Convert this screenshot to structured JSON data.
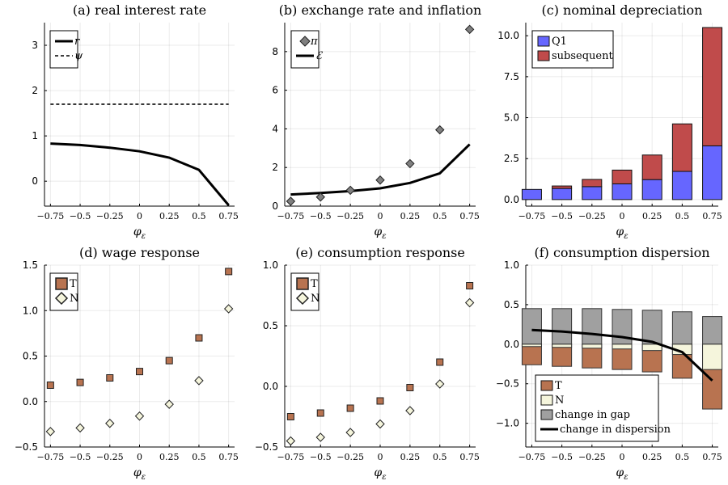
{
  "chart_data": [
    {
      "panel": "a",
      "type": "line",
      "title": "(a) real interest rate",
      "xlabel": "φ_ε",
      "x": [
        -0.75,
        -0.5,
        -0.25,
        0,
        0.25,
        0.5,
        0.75
      ],
      "xticks": [
        "−0.75",
        "−0.5",
        "−0.25",
        "0",
        "0.25",
        "0.5",
        "0.75"
      ],
      "yticks": [
        "0",
        "1",
        "2",
        "3"
      ],
      "ytick_values": [
        0,
        1,
        2,
        3
      ],
      "ylim": [
        -0.55,
        3.5
      ],
      "xlim": [
        -0.8,
        0.8
      ],
      "legend_position": "top-left",
      "series": [
        {
          "name": "r",
          "style": "solid",
          "color": "#000000",
          "values": [
            0.83,
            0.8,
            0.74,
            0.66,
            0.52,
            0.25,
            -0.53
          ]
        },
        {
          "name": "ψ",
          "style": "dashed",
          "color": "#000000",
          "values": [
            1.7,
            1.7,
            1.7,
            1.7,
            1.7,
            1.7,
            1.7
          ]
        }
      ]
    },
    {
      "panel": "b",
      "type": "line",
      "title": "(b) exchange rate and inflation",
      "xlabel": "φ_ε",
      "x": [
        -0.75,
        -0.5,
        -0.25,
        0,
        0.25,
        0.5,
        0.75
      ],
      "xticks": [
        "−0.75",
        "−0.5",
        "−0.25",
        "0",
        "0.25",
        "0.5",
        "0.75"
      ],
      "yticks": [
        "0",
        "2",
        "4",
        "6",
        "8"
      ],
      "ytick_values": [
        0,
        2,
        4,
        6,
        8
      ],
      "ylim": [
        0,
        9.5
      ],
      "xlim": [
        -0.8,
        0.8
      ],
      "legend_position": "top-left",
      "series": [
        {
          "name": "π",
          "style": "marker-diamond",
          "color": "#808080",
          "values": [
            0.25,
            0.47,
            0.82,
            1.35,
            2.2,
            3.95,
            9.15
          ]
        },
        {
          "name": "ℰ",
          "style": "solid",
          "color": "#000000",
          "values": [
            0.6,
            0.68,
            0.78,
            0.92,
            1.2,
            1.7,
            3.2
          ]
        }
      ]
    },
    {
      "panel": "c",
      "type": "bar",
      "stacked": true,
      "title": "(c) nominal depreciation",
      "xlabel": "φ_ε",
      "x": [
        -0.75,
        -0.5,
        -0.25,
        0,
        0.25,
        0.5,
        0.75
      ],
      "xticks": [
        "−0.75",
        "−0.5",
        "−0.25",
        "0",
        "0.25",
        "0.5",
        "0.75"
      ],
      "yticks": [
        "0.0",
        "2.5",
        "5.0",
        "7.5",
        "10.0"
      ],
      "ytick_values": [
        0,
        2.5,
        5,
        7.5,
        10
      ],
      "ylim": [
        -0.4,
        10.8
      ],
      "xlim": [
        -0.8,
        0.8
      ],
      "legend_position": "top-left",
      "series": [
        {
          "name": "Q1",
          "color": "#6666ff",
          "values": [
            0.62,
            0.68,
            0.79,
            0.96,
            1.22,
            1.72,
            3.28
          ]
        },
        {
          "name": "subsequent",
          "color": "#c04b4b",
          "values": [
            0.0,
            0.15,
            0.44,
            0.84,
            1.5,
            2.9,
            7.22
          ]
        }
      ]
    },
    {
      "panel": "d",
      "type": "scatter",
      "title": "(d) wage response",
      "xlabel": "φ_ε",
      "x": [
        -0.75,
        -0.5,
        -0.25,
        0,
        0.25,
        0.5,
        0.75
      ],
      "xticks": [
        "−0.75",
        "−0.5",
        "−0.25",
        "0",
        "0.25",
        "0.5",
        "0.75"
      ],
      "yticks": [
        "−0.5",
        "0.0",
        "0.5",
        "1.0",
        "1.5"
      ],
      "ytick_values": [
        -0.5,
        0,
        0.5,
        1.0,
        1.5
      ],
      "ylim": [
        -0.5,
        1.5
      ],
      "xlim": [
        -0.8,
        0.8
      ],
      "legend_position": "top-left",
      "series": [
        {
          "name": "T",
          "marker": "square",
          "color": "#b87350",
          "values": [
            0.18,
            0.21,
            0.26,
            0.33,
            0.45,
            0.7,
            1.43
          ]
        },
        {
          "name": "N",
          "marker": "diamond",
          "color": "#f5f5dc",
          "values": [
            -0.33,
            -0.29,
            -0.24,
            -0.16,
            -0.03,
            0.23,
            1.02
          ]
        }
      ]
    },
    {
      "panel": "e",
      "type": "scatter",
      "title": "(e) consumption response",
      "xlabel": "φ_ε",
      "x": [
        -0.75,
        -0.5,
        -0.25,
        0,
        0.25,
        0.5,
        0.75
      ],
      "xticks": [
        "−0.75",
        "−0.5",
        "−0.25",
        "0",
        "0.25",
        "0.5",
        "0.75"
      ],
      "yticks": [
        "−0.5",
        "0.0",
        "0.5",
        "1.0"
      ],
      "ytick_values": [
        -0.5,
        0,
        0.5,
        1.0
      ],
      "ylim": [
        -0.5,
        1.0
      ],
      "xlim": [
        -0.8,
        0.8
      ],
      "legend_position": "top-left",
      "series": [
        {
          "name": "T",
          "marker": "square",
          "color": "#b87350",
          "values": [
            -0.25,
            -0.22,
            -0.18,
            -0.12,
            -0.01,
            0.2,
            0.83
          ]
        },
        {
          "name": "N",
          "marker": "diamond",
          "color": "#f5f5dc",
          "values": [
            -0.45,
            -0.42,
            -0.38,
            -0.31,
            -0.2,
            0.02,
            0.69
          ]
        }
      ]
    },
    {
      "panel": "f",
      "type": "bar",
      "title": "(f) consumption dispersion",
      "xlabel": "φ_ε",
      "x": [
        -0.75,
        -0.5,
        -0.25,
        0,
        0.25,
        0.5,
        0.75
      ],
      "xticks": [
        "−0.75",
        "−0.5",
        "−0.25",
        "0",
        "0.25",
        "0.5",
        "0.75"
      ],
      "yticks": [
        "−1.0",
        "−0.5",
        "0.0",
        "0.5",
        "1.0"
      ],
      "ytick_values": [
        -1.0,
        -0.5,
        0,
        0.5,
        1.0
      ],
      "ylim": [
        -1.3,
        1.0
      ],
      "xlim": [
        -0.8,
        0.8
      ],
      "legend_position": "bottom-left",
      "series": [
        {
          "name": "T",
          "color": "#b87350",
          "values": [
            -0.26,
            -0.28,
            -0.3,
            -0.32,
            -0.35,
            -0.43,
            -0.82
          ]
        },
        {
          "name": "N",
          "color": "#f5f5dc",
          "values": [
            -0.03,
            -0.04,
            -0.05,
            -0.06,
            -0.08,
            -0.13,
            -0.32
          ]
        },
        {
          "name": "change in gap",
          "color": "#a0a0a0",
          "values": [
            0.45,
            0.45,
            0.45,
            0.44,
            0.43,
            0.41,
            0.35
          ]
        },
        {
          "name": "change in dispersion",
          "style": "line",
          "color": "#000000",
          "values": [
            0.18,
            0.16,
            0.13,
            0.09,
            0.03,
            -0.1,
            -0.46
          ]
        }
      ]
    }
  ]
}
